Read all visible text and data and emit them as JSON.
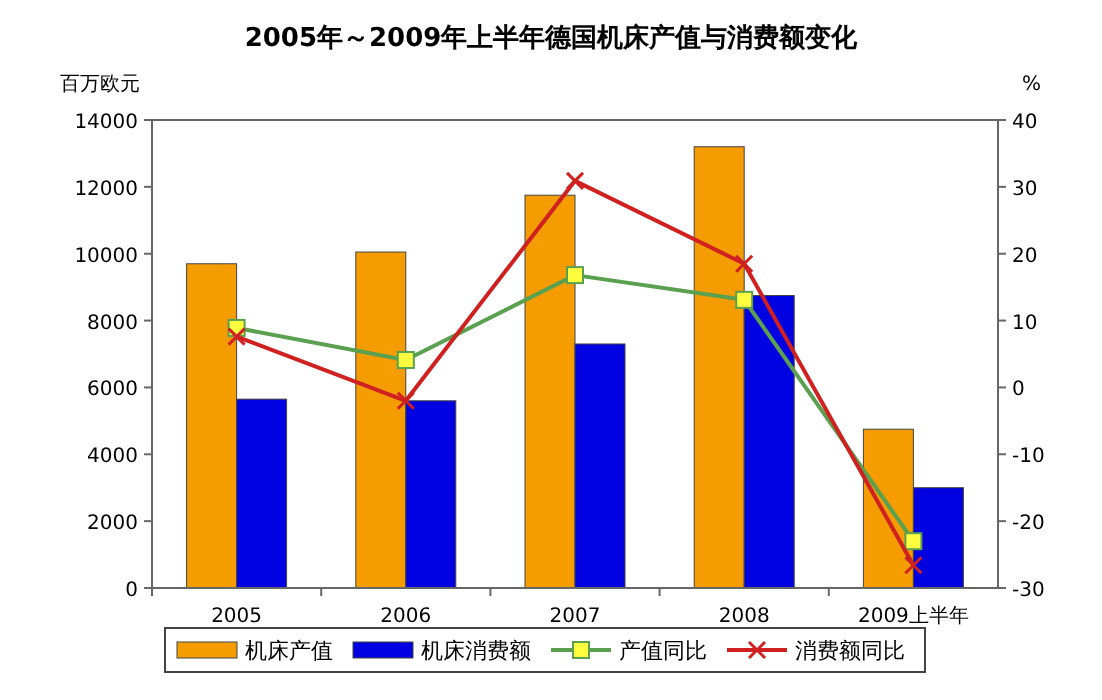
{
  "chart_data": {
    "type": "bar",
    "title": "2005年～2009年上半年德国机床产值与消费额变化",
    "ylabel": "百万欧元",
    "y2label": "%",
    "categories": [
      "2005",
      "2006",
      "2007",
      "2008",
      "2009上半年"
    ],
    "series": [
      {
        "name": "机床产值",
        "color": "#f59c00",
        "values": [
          9700,
          10050,
          11750,
          13200,
          4750
        ]
      },
      {
        "name": "机床消费额",
        "color": "#0000e0",
        "values": [
          5650,
          5600,
          7300,
          8750,
          3000
        ]
      },
      {
        "name": "产值同比",
        "type": "line",
        "axis": "y2",
        "color": "#5aa050",
        "marker": "square",
        "values": [
          8.9,
          4.1,
          16.8,
          13.1,
          -23.0
        ]
      },
      {
        "name": "消费额同比",
        "type": "line",
        "axis": "y2",
        "color": "#d02020",
        "marker": "cross",
        "values": [
          7.6,
          -2.0,
          30.9,
          18.5,
          -26.6
        ]
      }
    ],
    "ylim": [
      0,
      14000
    ],
    "yticks": [
      0,
      2000,
      4000,
      6000,
      8000,
      10000,
      12000,
      14000
    ],
    "y2lim": [
      -30,
      40
    ],
    "y2ticks": [
      -30,
      -20,
      -10,
      0,
      10,
      20,
      30,
      40
    ],
    "legend": "bottom"
  }
}
